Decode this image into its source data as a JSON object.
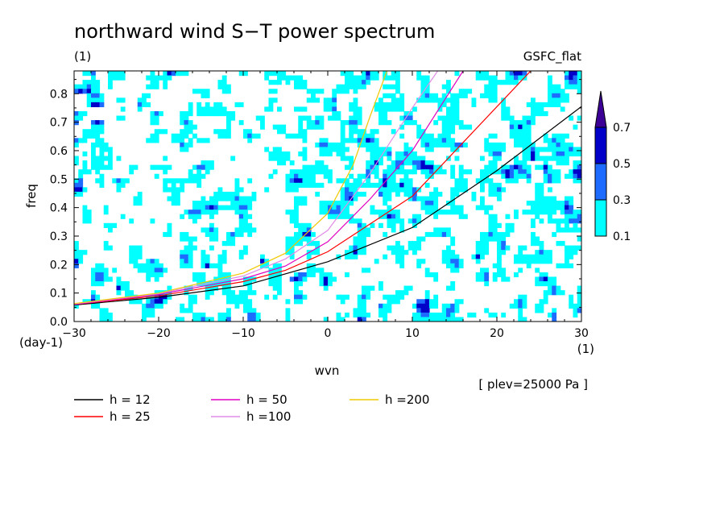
{
  "chart_data": {
    "type": "contour",
    "title": "northward wind S−T power spectrum",
    "title_units": "(1)",
    "source_label": "GSFC_flat",
    "xlabel": "wvn",
    "x_units": "(1)",
    "ylabel": "freq",
    "y_units": "(day-1)",
    "annotation": "[ plev=25000 Pa ]",
    "xlim": [
      -30,
      30
    ],
    "ylim": [
      0,
      0.88
    ],
    "x_ticks": [
      -30,
      -20,
      -10,
      0,
      10,
      20,
      30
    ],
    "x_tick_labels": [
      "−30",
      "−20",
      "−10",
      "0",
      "10",
      "20",
      "30"
    ],
    "y_ticks": [
      0,
      0.1,
      0.2,
      0.3,
      0.4,
      0.5,
      0.6,
      0.7,
      0.8
    ],
    "y_tick_labels": [
      "0.0",
      "0.1",
      "0.2",
      "0.3",
      "0.4",
      "0.5",
      "0.6",
      "0.7",
      "0.8"
    ],
    "contour_levels": [
      0.1,
      0.3,
      0.5,
      0.7
    ],
    "colorbar_labels": [
      "0.1",
      "0.3",
      "0.5",
      "0.7"
    ],
    "colorbar_colors": [
      "#00ffff",
      "#1e6cff",
      "#0000c8",
      "#3c0096"
    ],
    "curves": [
      {
        "name": "h = 12",
        "color": "#000000",
        "x": [
          -30,
          -20,
          -10,
          0,
          10,
          20,
          30
        ],
        "y": [
          0.058,
          0.085,
          0.125,
          0.21,
          0.33,
          0.53,
          0.755
        ]
      },
      {
        "name": "h = 25",
        "color": "#ff0000",
        "x": [
          -30,
          -20,
          -10,
          -5,
          0,
          10,
          24
        ],
        "y": [
          0.06,
          0.09,
          0.14,
          0.18,
          0.245,
          0.44,
          0.88
        ]
      },
      {
        "name": "h = 50",
        "color": "#e000c0",
        "x": [
          -30,
          -20,
          -10,
          -5,
          0,
          5,
          10,
          16
        ],
        "y": [
          0.06,
          0.095,
          0.15,
          0.195,
          0.28,
          0.43,
          0.6,
          0.88
        ]
      },
      {
        "name": "h =100",
        "color": "#e08ce6",
        "x": [
          -30,
          -20,
          -10,
          -5,
          0,
          5,
          10,
          13
        ],
        "y": [
          0.062,
          0.098,
          0.16,
          0.22,
          0.32,
          0.52,
          0.75,
          0.88
        ]
      },
      {
        "name": "h =200",
        "color": "#f0c800",
        "x": [
          -30,
          -20,
          -10,
          -5,
          0,
          3,
          5,
          7
        ],
        "y": [
          0.063,
          0.1,
          0.17,
          0.24,
          0.38,
          0.55,
          0.72,
          0.88
        ]
      }
    ],
    "legend_placement": "below-left"
  }
}
